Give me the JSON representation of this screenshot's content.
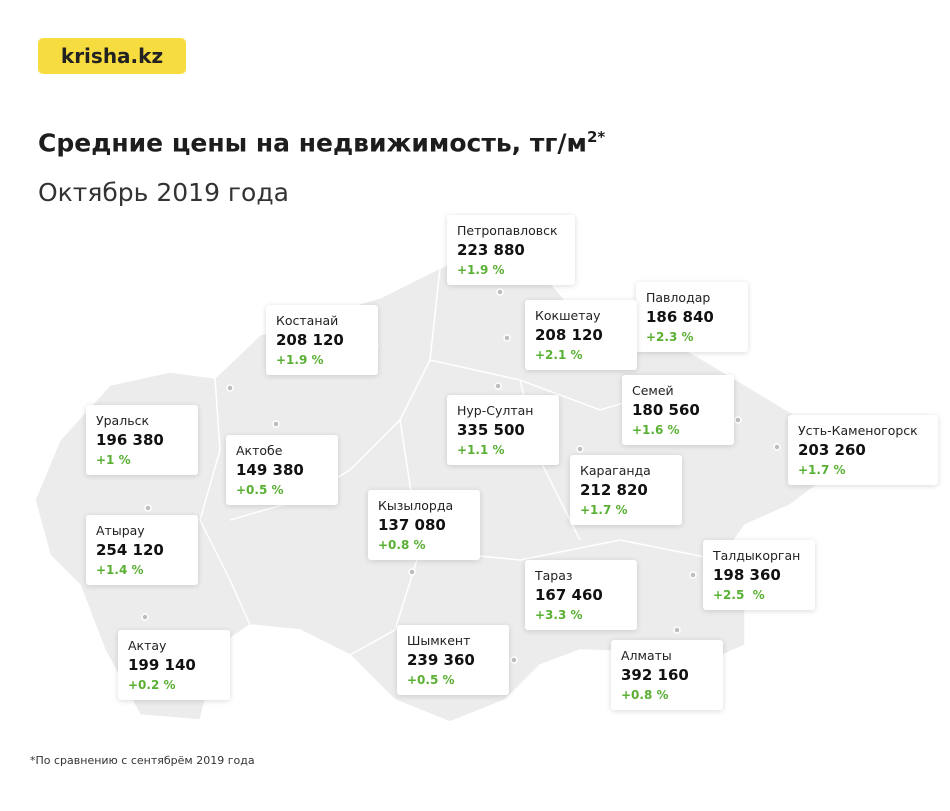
{
  "header": {
    "logo": "krisha.kz",
    "title": "Средние цены на недвижимость, тг/м",
    "title_sup": "2*",
    "subtitle": "Октябрь 2019 года"
  },
  "cities": [
    {
      "name": "Петропавловск",
      "price": "223 880",
      "change": "+1.9 %"
    },
    {
      "name": "Костанай",
      "price": "208 120",
      "change": "+1.9 %"
    },
    {
      "name": "Павлодар",
      "price": "186 840",
      "change": "+2.3 %"
    },
    {
      "name": "Кокшетау",
      "price": "208 120",
      "change": "+2.1 %"
    },
    {
      "name": "Уральск",
      "price": "196 380",
      "change": "+1 %"
    },
    {
      "name": "Актобе",
      "price": "149 380",
      "change": "+0.5 %"
    },
    {
      "name": "Нур-Султан",
      "price": "335 500",
      "change": "+1.1 %"
    },
    {
      "name": "Семей",
      "price": "180 560",
      "change": "+1.6 %"
    },
    {
      "name": "Усть-Каменогорск",
      "price": "203 260",
      "change": "+1.7 %"
    },
    {
      "name": "Караганда",
      "price": "212 820",
      "change": "+1.7 %"
    },
    {
      "name": "Кызылорда",
      "price": "137 080",
      "change": "+0.8 %"
    },
    {
      "name": "Атырау",
      "price": "254 120",
      "change": "+1.4 %"
    },
    {
      "name": "Тараз",
      "price": "167 460",
      "change": "+3.3 %"
    },
    {
      "name": "Талдыкорган",
      "price": "198 360",
      "change": "+2.5  %"
    },
    {
      "name": "Актау",
      "price": "199 140",
      "change": "+0.2 %"
    },
    {
      "name": "Шымкент",
      "price": "239 360",
      "change": "+0.5 %"
    },
    {
      "name": "Алматы",
      "price": "392 160",
      "change": "+0.8 %"
    }
  ],
  "footnote": "*По сравнению с сентябрём 2019 года"
}
